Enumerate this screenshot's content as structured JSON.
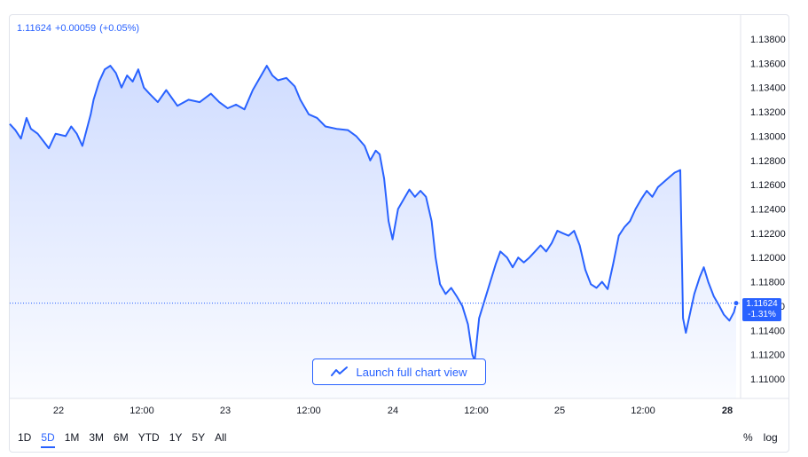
{
  "header": {
    "last": "1.11624",
    "change": "+0.00059",
    "change_pct": "(+0.05%)"
  },
  "price_tag": {
    "price": "1.11624",
    "pct": "-1.31%"
  },
  "launch_button": {
    "label": "Launch full chart view",
    "icon": "trend-line-icon"
  },
  "ranges": [
    "1D",
    "5D",
    "1M",
    "3M",
    "6M",
    "YTD",
    "1Y",
    "5Y",
    "All"
  ],
  "active_range": "5D",
  "right_tools": {
    "percent": "%",
    "log": "log"
  },
  "colors": {
    "line": "#2962ff",
    "fill_top": "#2962ff",
    "text": "#131722",
    "grid_border": "#e0e3eb"
  },
  "chart_data": {
    "type": "area",
    "x_tick_labels": [
      "22",
      "12:00",
      "23",
      "12:00",
      "24",
      "12:00",
      "25",
      "12:00",
      "28"
    ],
    "y_tick_labels": [
      "1.13800",
      "1.13600",
      "1.13400",
      "1.13200",
      "1.13000",
      "1.12800",
      "1.12600",
      "1.12400",
      "1.12200",
      "1.12000",
      "1.11800",
      "1.11600",
      "1.11400",
      "1.11200",
      "1.11000"
    ],
    "ylim": [
      1.1085,
      1.1385
    ],
    "x_range": [
      0,
      13
    ],
    "series": [
      {
        "points": [
          [
            0.0,
            1.131
          ],
          [
            0.1,
            1.1305
          ],
          [
            0.2,
            1.1298
          ],
          [
            0.3,
            1.1315
          ],
          [
            0.38,
            1.1306
          ],
          [
            0.5,
            1.1302
          ],
          [
            0.6,
            1.1296
          ],
          [
            0.7,
            1.129
          ],
          [
            0.82,
            1.1302
          ],
          [
            1.0,
            1.13
          ],
          [
            1.1,
            1.1308
          ],
          [
            1.2,
            1.1302
          ],
          [
            1.3,
            1.1292
          ],
          [
            1.45,
            1.1318
          ],
          [
            1.5,
            1.133
          ],
          [
            1.6,
            1.1345
          ],
          [
            1.7,
            1.1355
          ],
          [
            1.8,
            1.1358
          ],
          [
            1.9,
            1.1352
          ],
          [
            2.0,
            1.134
          ],
          [
            2.1,
            1.135
          ],
          [
            2.2,
            1.1345
          ],
          [
            2.3,
            1.1355
          ],
          [
            2.4,
            1.134
          ],
          [
            2.5,
            1.1335
          ],
          [
            2.65,
            1.1328
          ],
          [
            2.8,
            1.1338
          ],
          [
            3.0,
            1.1325
          ],
          [
            3.2,
            1.133
          ],
          [
            3.4,
            1.1328
          ],
          [
            3.6,
            1.1335
          ],
          [
            3.75,
            1.1328
          ],
          [
            3.9,
            1.1323
          ],
          [
            4.05,
            1.1326
          ],
          [
            4.2,
            1.1322
          ],
          [
            4.35,
            1.1338
          ],
          [
            4.5,
            1.135
          ],
          [
            4.6,
            1.1358
          ],
          [
            4.7,
            1.135
          ],
          [
            4.8,
            1.1346
          ],
          [
            4.95,
            1.1348
          ],
          [
            5.1,
            1.1341
          ],
          [
            5.2,
            1.133
          ],
          [
            5.35,
            1.1318
          ],
          [
            5.5,
            1.1315
          ],
          [
            5.65,
            1.1308
          ],
          [
            5.85,
            1.1306
          ],
          [
            6.05,
            1.1305
          ],
          [
            6.2,
            1.13
          ],
          [
            6.35,
            1.1292
          ],
          [
            6.45,
            1.128
          ],
          [
            6.55,
            1.1288
          ],
          [
            6.62,
            1.1285
          ],
          [
            6.7,
            1.1265
          ],
          [
            6.78,
            1.123
          ],
          [
            6.85,
            1.1215
          ],
          [
            6.95,
            1.124
          ],
          [
            7.05,
            1.1248
          ],
          [
            7.15,
            1.1256
          ],
          [
            7.25,
            1.125
          ],
          [
            7.35,
            1.1255
          ],
          [
            7.45,
            1.125
          ],
          [
            7.55,
            1.123
          ],
          [
            7.62,
            1.12
          ],
          [
            7.7,
            1.1178
          ],
          [
            7.8,
            1.117
          ],
          [
            7.9,
            1.1175
          ],
          [
            8.0,
            1.1168
          ],
          [
            8.1,
            1.116
          ],
          [
            8.2,
            1.1145
          ],
          [
            8.28,
            1.112
          ],
          [
            8.32,
            1.1115
          ],
          [
            8.4,
            1.115
          ],
          [
            8.5,
            1.1165
          ],
          [
            8.6,
            1.118
          ],
          [
            8.7,
            1.1195
          ],
          [
            8.78,
            1.1205
          ],
          [
            8.9,
            1.12
          ],
          [
            9.0,
            1.1192
          ],
          [
            9.1,
            1.12
          ],
          [
            9.2,
            1.1196
          ],
          [
            9.3,
            1.12
          ],
          [
            9.4,
            1.1205
          ],
          [
            9.5,
            1.121
          ],
          [
            9.6,
            1.1205
          ],
          [
            9.7,
            1.1212
          ],
          [
            9.8,
            1.1222
          ],
          [
            9.9,
            1.122
          ],
          [
            10.0,
            1.1218
          ],
          [
            10.1,
            1.1222
          ],
          [
            10.2,
            1.121
          ],
          [
            10.3,
            1.119
          ],
          [
            10.4,
            1.1178
          ],
          [
            10.5,
            1.1175
          ],
          [
            10.6,
            1.118
          ],
          [
            10.7,
            1.1174
          ],
          [
            10.8,
            1.1195
          ],
          [
            10.9,
            1.1218
          ],
          [
            11.0,
            1.1225
          ],
          [
            11.1,
            1.123
          ],
          [
            11.2,
            1.124
          ],
          [
            11.3,
            1.1248
          ],
          [
            11.4,
            1.1255
          ],
          [
            11.5,
            1.125
          ],
          [
            11.6,
            1.1258
          ],
          [
            11.7,
            1.1262
          ],
          [
            11.8,
            1.1266
          ],
          [
            11.9,
            1.127
          ],
          [
            12.0,
            1.1272
          ],
          [
            12.05,
            1.115
          ],
          [
            12.1,
            1.1138
          ],
          [
            12.18,
            1.1155
          ],
          [
            12.25,
            1.117
          ],
          [
            12.35,
            1.1184
          ],
          [
            12.42,
            1.1192
          ],
          [
            12.5,
            1.118
          ],
          [
            12.6,
            1.1168
          ],
          [
            12.7,
            1.116
          ],
          [
            12.78,
            1.1153
          ],
          [
            12.88,
            1.1148
          ],
          [
            12.96,
            1.1155
          ],
          [
            13.0,
            1.1162
          ]
        ]
      }
    ],
    "last_price_line": 1.11624,
    "grid": false
  }
}
